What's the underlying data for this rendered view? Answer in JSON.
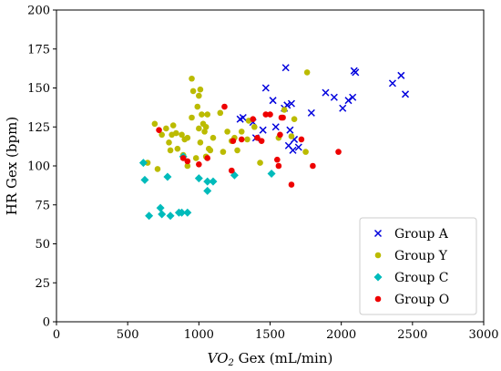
{
  "chart_data": {
    "type": "scatter",
    "xlabel_prefix": "VO",
    "xlabel_sub": "2",
    "xlabel_suffix": " Gex (mL/min)",
    "ylabel": "HR Gex (bpm)",
    "xlim": [
      0,
      3000
    ],
    "ylim": [
      0,
      200
    ],
    "xticks": [
      0,
      500,
      1000,
      1500,
      2000,
      2500,
      3000
    ],
    "yticks": [
      0,
      25,
      50,
      75,
      100,
      125,
      150,
      175,
      200
    ],
    "grid": false,
    "legend_position": "bottom-right",
    "series": [
      {
        "name": "Group A",
        "marker": "x",
        "color": "#0000dd",
        "points": [
          [
            1290,
            130
          ],
          [
            1310,
            131
          ],
          [
            1380,
            128
          ],
          [
            1400,
            118
          ],
          [
            1450,
            123
          ],
          [
            1470,
            150
          ],
          [
            1520,
            142
          ],
          [
            1540,
            125
          ],
          [
            1600,
            137
          ],
          [
            1610,
            163
          ],
          [
            1620,
            139
          ],
          [
            1630,
            113
          ],
          [
            1640,
            123
          ],
          [
            1650,
            140
          ],
          [
            1660,
            110
          ],
          [
            1670,
            117
          ],
          [
            1700,
            112
          ],
          [
            1790,
            134
          ],
          [
            1890,
            147
          ],
          [
            1950,
            144
          ],
          [
            2010,
            137
          ],
          [
            2050,
            142
          ],
          [
            2080,
            144
          ],
          [
            2090,
            161
          ],
          [
            2100,
            160
          ],
          [
            2360,
            153
          ],
          [
            2420,
            158
          ],
          [
            2450,
            146
          ]
        ]
      },
      {
        "name": "Group Y",
        "marker": "circle",
        "color": "#bbbb00",
        "points": [
          [
            640,
            102
          ],
          [
            690,
            127
          ],
          [
            710,
            98
          ],
          [
            740,
            120
          ],
          [
            770,
            124
          ],
          [
            790,
            115
          ],
          [
            800,
            110
          ],
          [
            810,
            120
          ],
          [
            820,
            126
          ],
          [
            840,
            121
          ],
          [
            850,
            111
          ],
          [
            880,
            120
          ],
          [
            890,
            107
          ],
          [
            900,
            117
          ],
          [
            920,
            100
          ],
          [
            920,
            118
          ],
          [
            950,
            131
          ],
          [
            950,
            156
          ],
          [
            960,
            148
          ],
          [
            980,
            105
          ],
          [
            990,
            138
          ],
          [
            1000,
            145
          ],
          [
            1000,
            124
          ],
          [
            1010,
            149
          ],
          [
            1010,
            115
          ],
          [
            1020,
            133
          ],
          [
            1030,
            127
          ],
          [
            1040,
            122
          ],
          [
            1050,
            106
          ],
          [
            1050,
            125
          ],
          [
            1060,
            133
          ],
          [
            1070,
            111
          ],
          [
            1080,
            110
          ],
          [
            1100,
            118
          ],
          [
            1150,
            134
          ],
          [
            1170,
            109
          ],
          [
            1200,
            122
          ],
          [
            1230,
            116
          ],
          [
            1250,
            118
          ],
          [
            1270,
            110
          ],
          [
            1300,
            122
          ],
          [
            1340,
            117
          ],
          [
            1350,
            129
          ],
          [
            1390,
            125
          ],
          [
            1430,
            102
          ],
          [
            1560,
            118
          ],
          [
            1600,
            136
          ],
          [
            1650,
            119
          ],
          [
            1670,
            130
          ],
          [
            1750,
            109
          ],
          [
            1760,
            160
          ]
        ]
      },
      {
        "name": "Group C",
        "marker": "diamond",
        "color": "#00bbbb",
        "points": [
          [
            610,
            102
          ],
          [
            620,
            91
          ],
          [
            650,
            68
          ],
          [
            730,
            73
          ],
          [
            740,
            69
          ],
          [
            780,
            93
          ],
          [
            800,
            68
          ],
          [
            860,
            70
          ],
          [
            880,
            70
          ],
          [
            890,
            106
          ],
          [
            920,
            70
          ],
          [
            1000,
            92
          ],
          [
            1060,
            90
          ],
          [
            1060,
            84
          ],
          [
            1100,
            90
          ],
          [
            1250,
            94
          ],
          [
            1510,
            95
          ]
        ]
      },
      {
        "name": "Group O",
        "marker": "circle",
        "color": "#ee0000",
        "points": [
          [
            720,
            123
          ],
          [
            890,
            105
          ],
          [
            920,
            103
          ],
          [
            1000,
            101
          ],
          [
            1060,
            105
          ],
          [
            1180,
            138
          ],
          [
            1230,
            97
          ],
          [
            1240,
            116
          ],
          [
            1300,
            117
          ],
          [
            1380,
            130
          ],
          [
            1410,
            118
          ],
          [
            1440,
            116
          ],
          [
            1470,
            133
          ],
          [
            1500,
            133
          ],
          [
            1550,
            104
          ],
          [
            1560,
            100
          ],
          [
            1570,
            120
          ],
          [
            1580,
            131
          ],
          [
            1590,
            131
          ],
          [
            1650,
            88
          ],
          [
            1720,
            117
          ],
          [
            1800,
            100
          ],
          [
            1980,
            109
          ]
        ]
      }
    ]
  }
}
